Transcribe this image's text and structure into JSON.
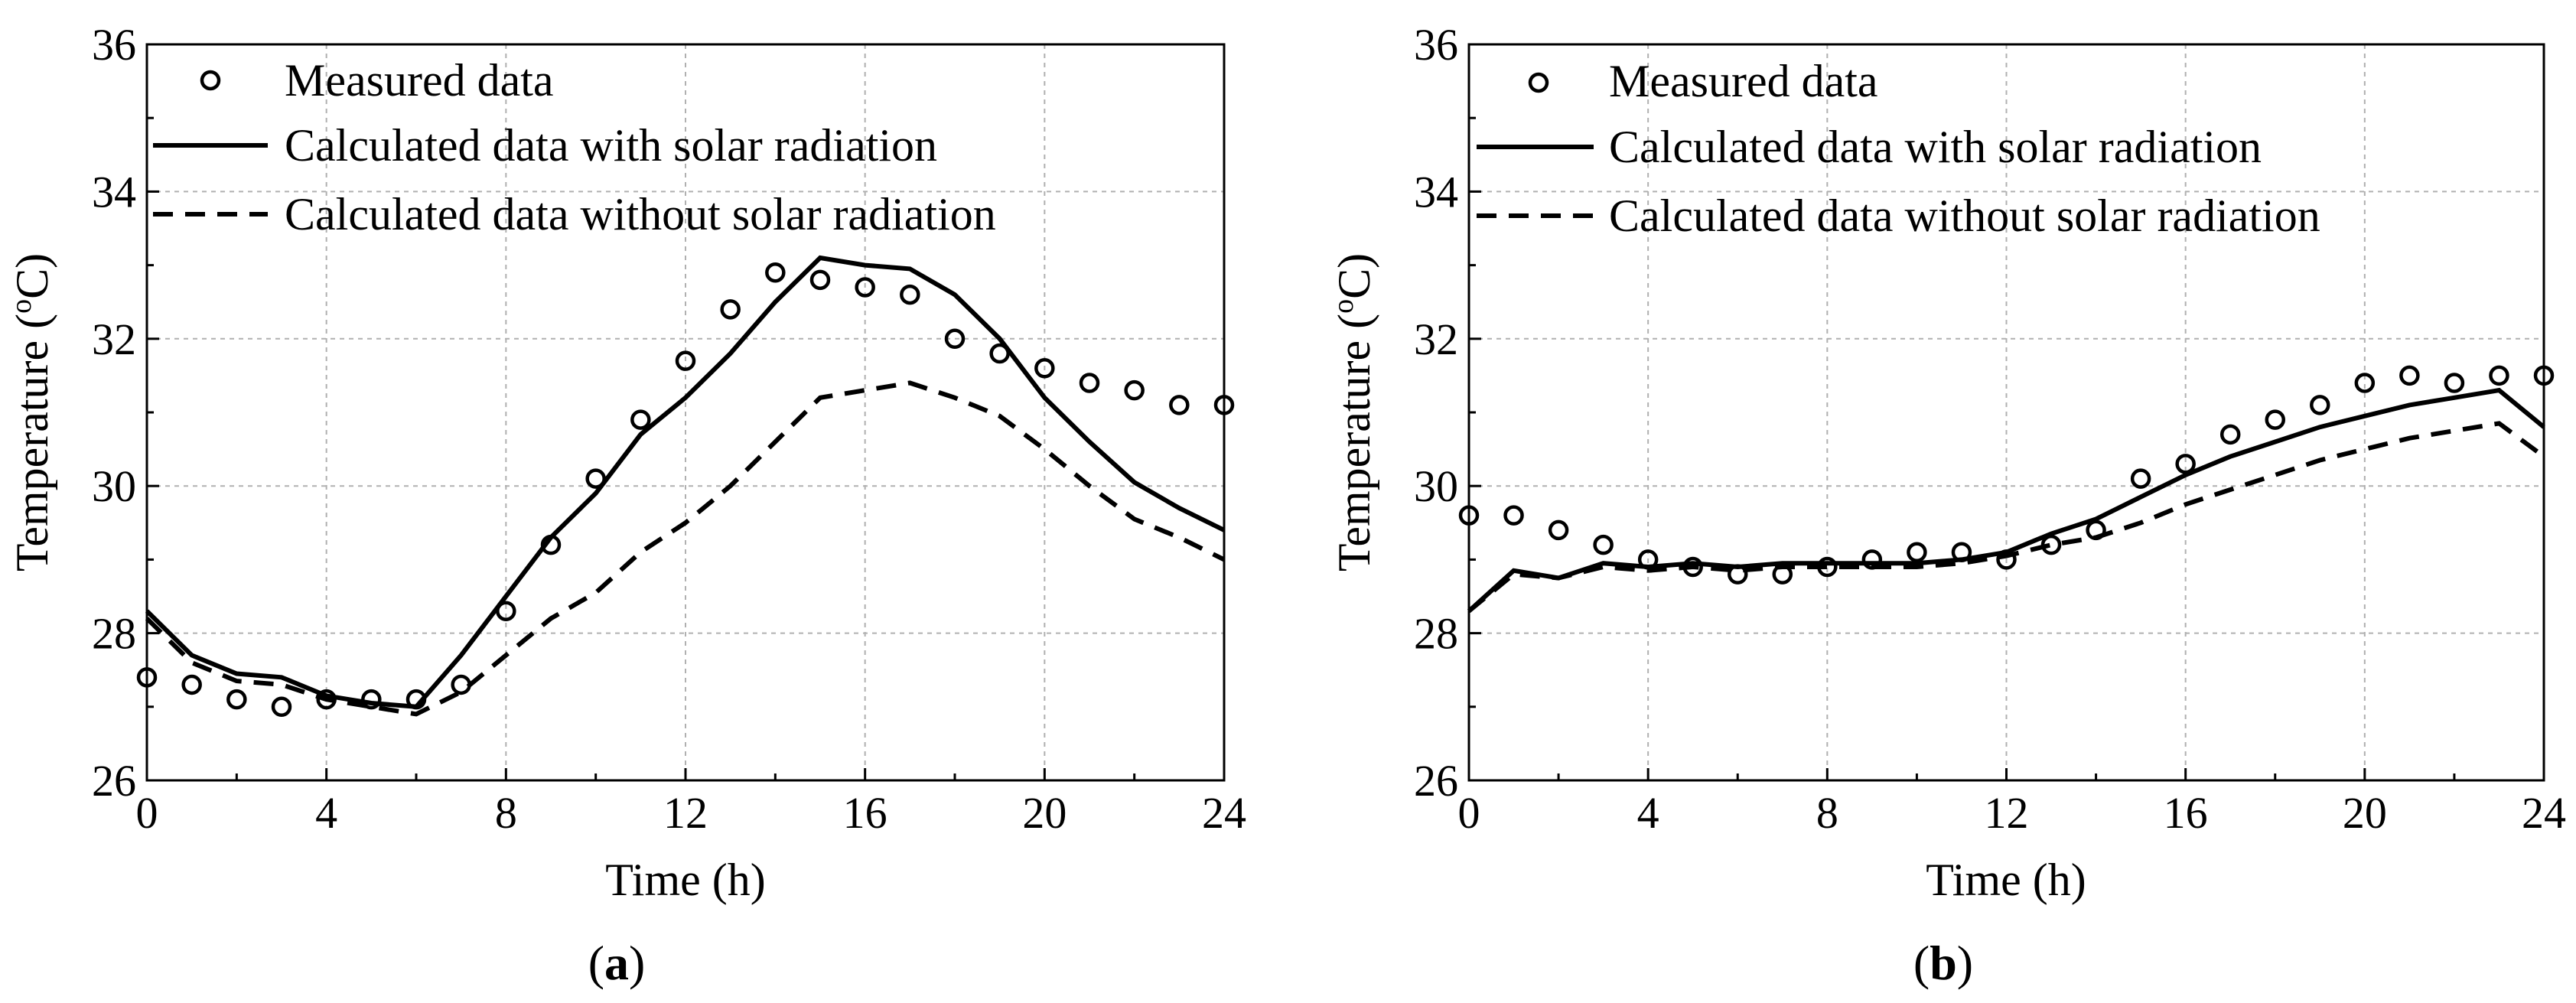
{
  "chart_data": [
    {
      "type": "line",
      "panel_label": "a",
      "xlabel": "Time (h)",
      "ylabel": "Temperature (",
      "ylabel_sup": "o",
      "ylabel_unit": "C)",
      "xlim": [
        0,
        24
      ],
      "ylim": [
        26,
        36
      ],
      "xticks": [
        "0",
        "4",
        "8",
        "12",
        "16",
        "20",
        "24"
      ],
      "yticks": [
        "26",
        "28",
        "30",
        "32",
        "34",
        "36"
      ],
      "grid": true,
      "legend_position": "top-left",
      "series": [
        {
          "name": "Measured data",
          "style": "circle-markers",
          "x": [
            0,
            1,
            2,
            3,
            4,
            5,
            6,
            7,
            8,
            9,
            10,
            11,
            12,
            13,
            14,
            15,
            16,
            17,
            18,
            19,
            20,
            21,
            22,
            23,
            24
          ],
          "y": [
            27.4,
            27.3,
            27.1,
            27.0,
            27.1,
            27.1,
            27.1,
            27.3,
            28.3,
            29.2,
            30.1,
            30.9,
            31.7,
            32.4,
            32.9,
            32.8,
            32.7,
            32.6,
            32.0,
            31.8,
            31.6,
            31.4,
            31.3,
            31.1,
            31.1
          ]
        },
        {
          "name": "Calculated data with solar radiation",
          "style": "solid",
          "x": [
            0,
            1,
            2,
            3,
            4,
            5,
            6,
            7,
            8,
            9,
            10,
            11,
            12,
            13,
            14,
            15,
            16,
            17,
            18,
            19,
            20,
            21,
            22,
            23,
            24
          ],
          "y": [
            28.3,
            27.7,
            27.45,
            27.4,
            27.15,
            27.05,
            27.0,
            27.7,
            28.5,
            29.3,
            29.9,
            30.7,
            31.2,
            31.8,
            32.5,
            33.1,
            33.0,
            32.95,
            32.6,
            32.0,
            31.2,
            30.6,
            30.05,
            29.7,
            29.4
          ]
        },
        {
          "name": "Calculated data without solar radiation",
          "style": "dashed",
          "x": [
            0,
            1,
            2,
            3,
            4,
            5,
            6,
            7,
            8,
            9,
            10,
            11,
            12,
            13,
            14,
            15,
            16,
            17,
            18,
            19,
            20,
            21,
            22,
            23,
            24
          ],
          "y": [
            28.2,
            27.6,
            27.35,
            27.3,
            27.1,
            27.0,
            26.9,
            27.2,
            27.7,
            28.2,
            28.55,
            29.1,
            29.5,
            30.0,
            30.6,
            31.2,
            31.3,
            31.4,
            31.2,
            30.95,
            30.5,
            30.0,
            29.55,
            29.3,
            29.0
          ]
        }
      ]
    },
    {
      "type": "line",
      "panel_label": "b",
      "xlabel": "Time (h)",
      "ylabel": "Temperature (",
      "ylabel_sup": "o",
      "ylabel_unit": "C)",
      "xlim": [
        0,
        24
      ],
      "ylim": [
        26,
        36
      ],
      "xticks": [
        "0",
        "4",
        "8",
        "12",
        "16",
        "20",
        "24"
      ],
      "yticks": [
        "26",
        "28",
        "30",
        "32",
        "34",
        "36"
      ],
      "grid": true,
      "legend_position": "top-left",
      "series": [
        {
          "name": "Measured data",
          "style": "circle-markers",
          "x": [
            0,
            1,
            2,
            3,
            4,
            5,
            6,
            7,
            8,
            9,
            10,
            11,
            12,
            13,
            14,
            15,
            16,
            17,
            18,
            19,
            20,
            21,
            22,
            23,
            24
          ],
          "y": [
            29.6,
            29.6,
            29.4,
            29.2,
            29.0,
            28.9,
            28.8,
            28.8,
            28.9,
            29.0,
            29.1,
            29.1,
            29.0,
            29.2,
            29.4,
            30.1,
            30.3,
            30.7,
            30.9,
            31.1,
            31.4,
            31.5,
            31.4,
            31.5,
            31.5
          ]
        },
        {
          "name": "Calculated data with solar radiation",
          "style": "solid",
          "x": [
            0,
            1,
            2,
            3,
            4,
            5,
            6,
            7,
            8,
            9,
            10,
            11,
            12,
            13,
            14,
            15,
            16,
            17,
            18,
            19,
            20,
            21,
            22,
            23,
            24
          ],
          "y": [
            28.3,
            28.85,
            28.75,
            28.95,
            28.9,
            28.95,
            28.9,
            28.95,
            28.95,
            28.95,
            28.95,
            29.0,
            29.1,
            29.35,
            29.55,
            29.85,
            30.15,
            30.4,
            30.6,
            30.8,
            30.95,
            31.1,
            31.2,
            31.3,
            30.8
          ]
        },
        {
          "name": "Calculated data without solar radiation",
          "style": "dashed",
          "x": [
            0,
            1,
            2,
            3,
            4,
            5,
            6,
            7,
            8,
            9,
            10,
            11,
            12,
            13,
            14,
            15,
            16,
            17,
            18,
            19,
            20,
            21,
            22,
            23,
            24
          ],
          "y": [
            28.3,
            28.8,
            28.75,
            28.9,
            28.85,
            28.9,
            28.85,
            28.9,
            28.9,
            28.9,
            28.9,
            28.95,
            29.05,
            29.2,
            29.3,
            29.5,
            29.75,
            29.95,
            30.15,
            30.35,
            30.5,
            30.65,
            30.75,
            30.85,
            30.4
          ]
        }
      ]
    }
  ]
}
